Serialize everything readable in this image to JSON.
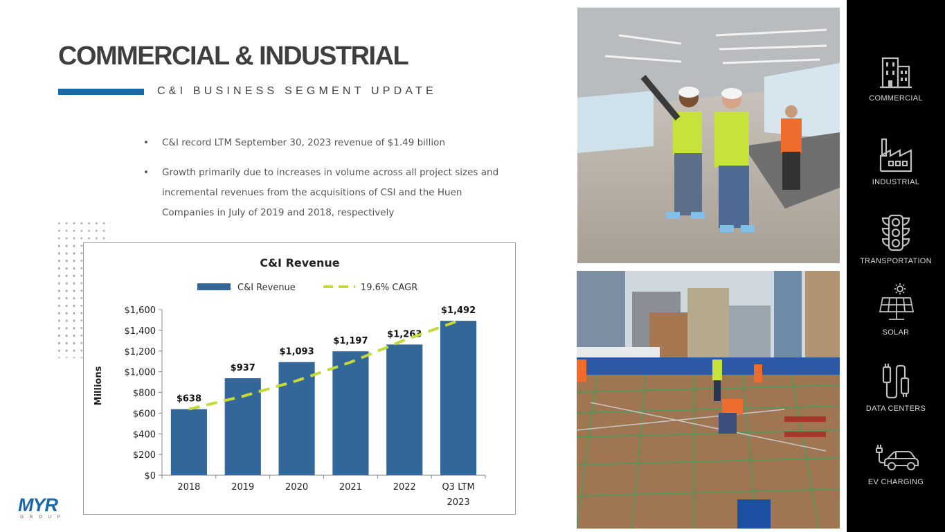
{
  "header": {
    "title": "COMMERCIAL & INDUSTRIAL",
    "subtitle": "C&I BUSINESS SEGMENT UPDATE"
  },
  "bullets": [
    "C&I record LTM September 30, 2023 revenue of $1.49 billion",
    "Growth primarily due to increases in volume across all project sizes and incremental revenues from the acquisitions of CSI and the Huen Companies in July of 2019 and 2018, respectively"
  ],
  "sidebar": {
    "items": [
      {
        "label": "COMMERCIAL",
        "icon": "building-icon"
      },
      {
        "label": "INDUSTRIAL",
        "icon": "factory-icon"
      },
      {
        "label": "TRANSPORTATION",
        "icon": "traffic-light-icon"
      },
      {
        "label": "SOLAR",
        "icon": "solar-panel-icon"
      },
      {
        "label": "DATA CENTERS",
        "icon": "cable-plug-icon"
      },
      {
        "label": "EV CHARGING",
        "icon": "ev-car-icon"
      }
    ]
  },
  "logo": {
    "text": "MYR",
    "subtext": "GROUP"
  },
  "colors": {
    "accent": "#1769a8",
    "bar": "#336699",
    "cagr_line": "#c5d93a",
    "sidebar_bg": "#000000"
  },
  "chart_data": {
    "type": "bar",
    "title": "C&I Revenue",
    "ylabel": "Millions",
    "xlabel": "",
    "categories": [
      "2018",
      "2019",
      "2020",
      "2021",
      "2022",
      "Q3 LTM 2023"
    ],
    "series": [
      {
        "name": "C&I Revenue",
        "type": "bar",
        "values": [
          638,
          937,
          1093,
          1197,
          1263,
          1492
        ]
      },
      {
        "name": "19.6% CAGR",
        "type": "line-dashed",
        "values": [
          638,
          763,
          913,
          1092,
          1306,
          1492
        ]
      }
    ],
    "data_labels": [
      "$638",
      "$937",
      "$1,093",
      "$1,197",
      "$1,263",
      "$1,492"
    ],
    "ylim": [
      0,
      1600
    ],
    "yticks": [
      0,
      200,
      400,
      600,
      800,
      1000,
      1200,
      1400,
      1600
    ],
    "ytick_labels": [
      "$0",
      "$200",
      "$400",
      "$600",
      "$800",
      "$1,000",
      "$1,200",
      "$1,400",
      "$1,600"
    ],
    "legend": "top",
    "grid": false
  }
}
